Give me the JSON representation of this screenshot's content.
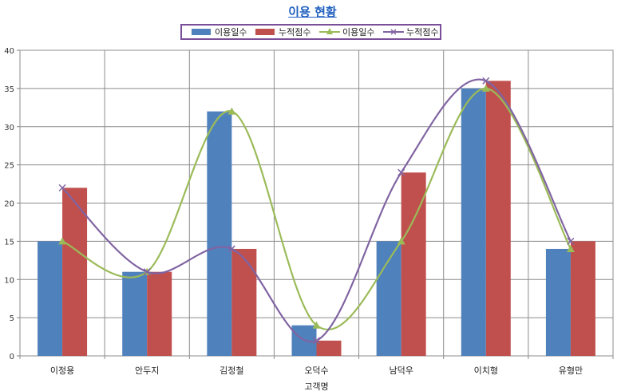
{
  "chart_data": {
    "type": "bar",
    "title": "이용 현황",
    "xlabel": "고객명",
    "ylabel": "",
    "ylim": [
      0,
      40
    ],
    "yticks": [
      0,
      5,
      10,
      15,
      20,
      25,
      30,
      35,
      40
    ],
    "grid": true,
    "legend_position": "top-center",
    "categories": [
      "이정용",
      "안두지",
      "김정철",
      "오덕수",
      "남덕우",
      "이치형",
      "유형만"
    ],
    "series": [
      {
        "name": "이용일수",
        "kind": "bar",
        "color": "#4f81bd",
        "values": [
          15,
          11,
          32,
          4,
          15,
          35,
          14
        ]
      },
      {
        "name": "누적점수",
        "kind": "bar",
        "color": "#c0504d",
        "values": [
          22,
          11,
          14,
          2,
          24,
          36,
          15
        ]
      },
      {
        "name": "이용일수",
        "kind": "line",
        "marker": "triangle",
        "color": "#9bbb59",
        "values": [
          15,
          11,
          32,
          4,
          15,
          35,
          14
        ]
      },
      {
        "name": "누적점수",
        "kind": "line",
        "marker": "x",
        "color": "#8064a2",
        "values": [
          22,
          11,
          14,
          2,
          24,
          36,
          15
        ]
      }
    ]
  }
}
